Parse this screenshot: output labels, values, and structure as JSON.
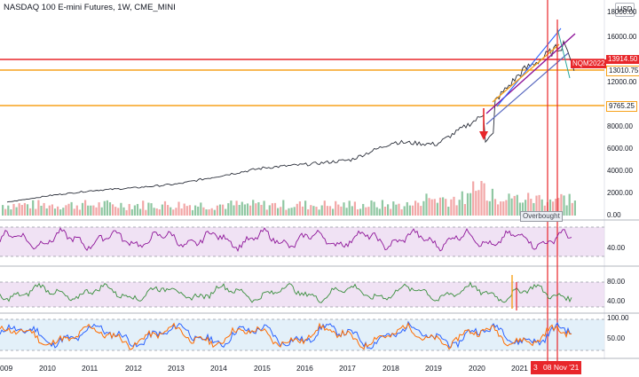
{
  "header": {
    "title": "NASDAQ 100 E-mini Futures, 1W, CME_MINI",
    "currency_button": "USD"
  },
  "colors": {
    "price_line": "#2a2e39",
    "accent_red": "#e8262a",
    "orange": "#f7a21b",
    "rsi_line": "#8e1599",
    "rsi_bg": "#ead6f0",
    "mfi_line": "#388e3c",
    "stoch_k": "#2962ff",
    "stoch_d": "#ff6d00",
    "stoch_bg": "#dcecf8"
  },
  "price_axis": {
    "labels": [
      "18000.00",
      "16000.00",
      "12000.00",
      "8000.00",
      "6000.00",
      "4000.00",
      "2000.00",
      "0.00"
    ],
    "tags": {
      "symbol": "NQM2022",
      "level_red": "13914.50",
      "level_orange_high": "13010.75",
      "level_orange_low": "9765.25"
    }
  },
  "volume_label": "Overbought",
  "indicators": {
    "rsi": {
      "labels": [
        "40.00"
      ]
    },
    "mfi": {
      "labels": [
        "80.00",
        "40.00"
      ]
    },
    "stoch": {
      "labels": [
        "100.00",
        "50.00"
      ]
    }
  },
  "time_axis": {
    "labels": [
      "009",
      "2010",
      "2011",
      "2012",
      "2013",
      "2014",
      "2015",
      "2016",
      "2017",
      "2018",
      "2019",
      "2020",
      "2021"
    ],
    "cursor_a": "3",
    "cursor_b": "08 Nov '21"
  },
  "chart_data": {
    "type": "line",
    "x": [
      2009,
      2010,
      2011,
      2012,
      2013,
      2014,
      2015,
      2016,
      2017,
      2018,
      2019,
      2020,
      2021,
      2022
    ],
    "series": [
      {
        "values": [
          1200,
          1800,
          2250,
          2500,
          2850,
          3600,
          4300,
          4600,
          5000,
          6600,
          6400,
          8800,
          13000,
          15500
        ]
      }
    ]
  }
}
